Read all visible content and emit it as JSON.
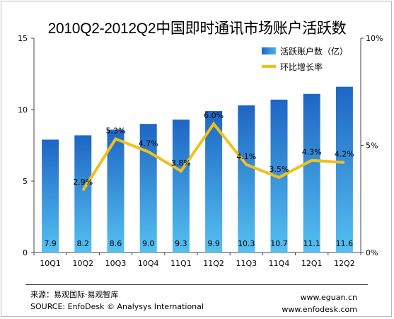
{
  "chart_data": {
    "type": "bar",
    "title": "2010Q2-2012Q2中国即时通讯市场账户活跃数",
    "categories": [
      "10Q1",
      "10Q2",
      "10Q3",
      "10Q4",
      "11Q1",
      "11Q2",
      "11Q3",
      "11Q4",
      "12Q1",
      "12Q2"
    ],
    "series": [
      {
        "name": "活跃账户数（亿）",
        "type": "bar",
        "axis": "left",
        "values": [
          7.9,
          8.2,
          8.6,
          9.0,
          9.3,
          9.9,
          10.3,
          10.7,
          11.1,
          11.6
        ],
        "labels": [
          "7.9",
          "8.2",
          "8.6",
          "9.0",
          "9.3",
          "9.9",
          "10.3",
          "10.7",
          "11.1",
          "11.6"
        ]
      },
      {
        "name": "环比增长率",
        "type": "line",
        "axis": "right",
        "values": [
          null,
          2.9,
          5.3,
          4.7,
          3.8,
          6.0,
          4.1,
          3.5,
          4.3,
          4.2
        ],
        "labels": [
          "",
          "2.9%",
          "5.3%",
          "4.7%",
          "3.8%",
          "6.0%",
          "4.1%",
          "3.5%",
          "4.3%",
          "4.2%"
        ]
      }
    ],
    "y_left": {
      "ticks": [
        "0",
        "5",
        "10",
        "15"
      ],
      "lim": [
        0,
        15
      ]
    },
    "y_right": {
      "ticks": [
        "0%",
        "5%",
        "10%"
      ],
      "lim": [
        0,
        10
      ]
    },
    "legend_position": "top-right",
    "grid": false,
    "colors": {
      "bar_dark": "#1e66c4",
      "bar_light": "#4fb4ea",
      "line": "#f2c01c"
    }
  },
  "footer": {
    "source_cn": "来源：易观国际·易观智库",
    "source_en": "SOURCE: EnfoDesk © Analysys International",
    "url1": "www.eguan.cn",
    "url2": "www.enfodesk.com"
  }
}
